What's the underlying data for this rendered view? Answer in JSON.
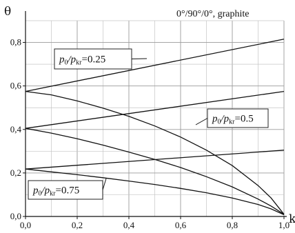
{
  "chart_data": {
    "type": "line",
    "title": "0°/90°/0°, graphite",
    "ylabel": "θ",
    "xlabel": "k",
    "xlim": [
      0,
      1
    ],
    "ylim": [
      0,
      0.9
    ],
    "xticks": [
      "0,0",
      "0,2",
      "0,4",
      "0,6",
      "0,8",
      "1,0"
    ],
    "yticks": [
      "0,0",
      "0,2",
      "0,4",
      "0,6",
      "0,8"
    ],
    "grid": true,
    "series": [
      {
        "name": "p0/pkr=0.25 (upper)",
        "x": [
          0,
          1
        ],
        "y": [
          0.575,
          0.815
        ]
      },
      {
        "name": "p0/pkr=0.25 (lower)",
        "x": [
          0,
          0.1,
          0.2,
          0.3,
          0.4,
          0.5,
          0.6,
          0.7,
          0.8,
          0.9,
          0.95,
          1
        ],
        "y": [
          0.575,
          0.559,
          0.531,
          0.498,
          0.46,
          0.416,
          0.365,
          0.305,
          0.234,
          0.142,
          0.085,
          0.01
        ]
      },
      {
        "name": "p0/pkr=0.5 (upper)",
        "x": [
          0,
          1
        ],
        "y": [
          0.405,
          0.575
        ]
      },
      {
        "name": "p0/pkr=0.5 (lower)",
        "x": [
          0,
          0.1,
          0.2,
          0.3,
          0.4,
          0.5,
          0.6,
          0.7,
          0.8,
          0.9,
          0.95,
          1
        ],
        "y": [
          0.405,
          0.383,
          0.357,
          0.328,
          0.296,
          0.262,
          0.225,
          0.183,
          0.136,
          0.08,
          0.048,
          0.01
        ]
      },
      {
        "name": "p0/pkr=0.75 (upper)",
        "x": [
          0,
          1
        ],
        "y": [
          0.218,
          0.305
        ]
      },
      {
        "name": "p0/pkr=0.75 (lower)",
        "x": [
          0,
          0.1,
          0.2,
          0.3,
          0.4,
          0.5,
          0.6,
          0.7,
          0.8,
          0.9,
          0.95,
          1
        ],
        "y": [
          0.218,
          0.205,
          0.192,
          0.178,
          0.163,
          0.147,
          0.129,
          0.109,
          0.085,
          0.055,
          0.035,
          0.008
        ]
      }
    ],
    "annotations": [
      {
        "prefix": "p",
        "psub": "0",
        "slash": "/p",
        "ksub": "kr",
        "value": "=0.25"
      },
      {
        "prefix": "p",
        "psub": "0",
        "slash": "/p",
        "ksub": "kr",
        "value": "=0.5"
      },
      {
        "prefix": "p",
        "psub": "0",
        "slash": "/p",
        "ksub": "kr",
        "value": "=0.75"
      }
    ]
  }
}
